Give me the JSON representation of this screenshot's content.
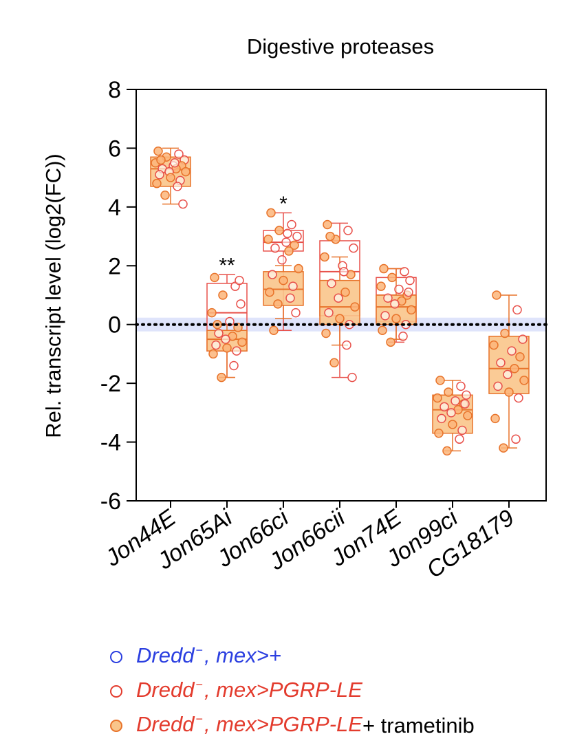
{
  "chart_data": {
    "type": "box",
    "title": "Digestive proteases",
    "ylabel": "Rel. transcript level (log2(FC))",
    "xlabel": "",
    "ylim": [
      -6,
      8
    ],
    "yticks": [
      "8",
      "6",
      "4",
      "2",
      "0",
      "-2",
      "-4",
      "-6"
    ],
    "ytick_values": [
      8,
      6,
      4,
      2,
      0,
      -2,
      -4,
      -6
    ],
    "reference_line": 0,
    "categories": [
      "Jon44E",
      "Jon65Ai",
      "Jon66ci",
      "Jon66cii",
      "Jon74E",
      "Jon99ci",
      "CG18179"
    ],
    "series": [
      {
        "name": "Dredd −, mex>PGRP-LE",
        "style": "open",
        "boxes": [
          null,
          {
            "q1": -0.9,
            "median": 0.4,
            "q3": 1.4,
            "min": -1.8,
            "max": 1.7
          },
          {
            "q1": 2.5,
            "median": 2.8,
            "q3": 3.2,
            "min": -0.2,
            "max": 3.8
          },
          {
            "q1": 0.3,
            "median": 1.8,
            "q3": 2.85,
            "min": -1.8,
            "max": 3.45
          },
          {
            "q1": 0.1,
            "median": 1.0,
            "q3": 1.6,
            "min": -0.6,
            "max": 1.9
          },
          null,
          null
        ]
      },
      {
        "name": "Dredd −, mex>PGRP-LE + trametinib",
        "style": "filled",
        "boxes": [
          {
            "q1": 4.7,
            "median": 5.3,
            "q3": 5.7,
            "min": 4.1,
            "max": 6.0
          },
          {
            "q1": -0.9,
            "median": -0.5,
            "q3": -0.2,
            "min": -1.8,
            "max": 0.0
          },
          {
            "q1": 0.65,
            "median": 1.2,
            "q3": 1.8,
            "min": 0.2,
            "max": 2.0
          },
          {
            "q1": 0.0,
            "median": 0.6,
            "q3": 1.5,
            "min": -0.7,
            "max": 2.3
          },
          {
            "q1": 0.0,
            "median": 0.6,
            "q3": 1.0,
            "min": -0.5,
            "max": 1.9
          },
          {
            "q1": -3.7,
            "median": -2.9,
            "q3": -2.4,
            "min": -4.3,
            "max": -1.9
          },
          {
            "q1": -2.35,
            "median": -1.5,
            "q3": -0.4,
            "min": -4.2,
            "max": 1.0
          }
        ]
      }
    ],
    "points": [
      [
        5.9,
        5.8,
        5.7,
        5.6,
        5.5,
        5.4,
        5.4,
        5.3,
        5.3,
        5.2,
        5.2,
        5.1,
        5.0,
        4.9,
        4.8,
        4.7,
        4.4,
        4.1,
        5.6,
        5.5
      ],
      [
        1.6,
        1.3,
        1.0,
        0.7,
        0.4,
        0.1,
        -0.1,
        -0.3,
        -0.4,
        -0.5,
        -0.6,
        -0.7,
        -0.8,
        -0.9,
        -1.0,
        -1.4,
        -1.8,
        1.5,
        0.0
      ],
      [
        3.8,
        3.4,
        3.2,
        3.0,
        2.9,
        2.8,
        2.7,
        2.6,
        2.5,
        2.2,
        1.9,
        1.7,
        1.5,
        1.3,
        1.1,
        0.9,
        0.7,
        0.4,
        -0.2,
        3.1
      ],
      [
        3.4,
        3.2,
        2.9,
        2.6,
        2.3,
        2.0,
        1.7,
        1.4,
        1.1,
        0.9,
        0.6,
        0.4,
        0.2,
        0.0,
        -0.3,
        -0.7,
        -1.3,
        -1.8,
        3.0,
        1.8
      ],
      [
        1.9,
        1.8,
        1.6,
        1.5,
        1.3,
        1.2,
        1.0,
        0.9,
        0.8,
        0.7,
        0.5,
        0.3,
        0.2,
        0.0,
        -0.2,
        -0.4,
        -0.6,
        1.1
      ],
      [
        -1.9,
        -2.1,
        -2.3,
        -2.4,
        -2.5,
        -2.6,
        -2.7,
        -2.8,
        -2.9,
        -3.0,
        -3.1,
        -3.2,
        -3.4,
        -3.6,
        -3.7,
        -3.9,
        -4.3,
        -2.7
      ],
      [
        1.0,
        0.5,
        -0.3,
        -0.5,
        -0.7,
        -0.9,
        -1.1,
        -1.3,
        -1.5,
        -1.7,
        -1.9,
        -2.1,
        -2.3,
        -2.5,
        -3.2,
        -3.9,
        -4.2
      ]
    ],
    "annotations": [
      {
        "category": "Jon65Ai",
        "text": "**",
        "y": 2.2
      },
      {
        "category": "Jon66ci",
        "text": "*",
        "y": 4.3
      }
    ],
    "legend": {
      "placement": "bottom",
      "entries": [
        {
          "italic": "Dredd",
          "superscript": "−",
          "rest": ", mex>+",
          "suffix": "",
          "color": "#2b3fe0",
          "marker": "open"
        },
        {
          "italic": "Dredd",
          "superscript": "−",
          "rest": ", mex>PGRP-LE",
          "suffix": "",
          "color": "#e33b2d",
          "marker": "open"
        },
        {
          "italic": "Dredd",
          "superscript": "−",
          "rest": ", mex>PGRP-LE",
          "suffix": " + trametinib",
          "color": "#e33b2d",
          "marker": "filled"
        }
      ]
    },
    "colors": {
      "open_stroke": "#e8504a",
      "filled_stroke": "#e8732a",
      "filled_fill": "#f9c58b",
      "point_fill": "#fbb57a",
      "band": "#dfe4fb",
      "axis": "#000000"
    }
  }
}
